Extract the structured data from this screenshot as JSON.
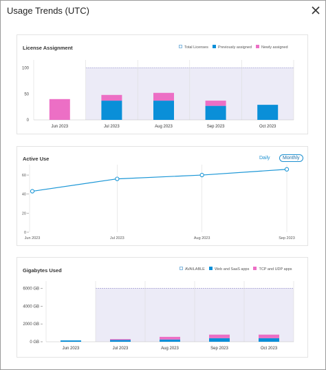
{
  "header": {
    "title": "Usage Trends (UTC)"
  },
  "icons": {
    "close": "close-icon"
  },
  "colors": {
    "previous": "#0a8fd8",
    "new": "#ec6fc5",
    "band": "#ecebf7",
    "band_border": "#a9a6d6",
    "line": "#1a96d6"
  },
  "license": {
    "title": "License Assignment",
    "legend": [
      "Total Licenses",
      "Previously assigned",
      "Newly assigned"
    ],
    "chart_data": {
      "type": "bar",
      "categories": [
        "Jun 2023",
        "Jul 2023",
        "Aug 2023",
        "Sep 2023",
        "Oct 2023"
      ],
      "y_ticks": [
        "0",
        "50",
        "100"
      ],
      "ylim": [
        0,
        110
      ],
      "series": [
        {
          "name": "Previously assigned",
          "values": [
            0,
            37,
            37,
            27,
            29
          ]
        },
        {
          "name": "Newly assigned",
          "values": [
            40,
            11,
            15,
            10,
            0
          ]
        }
      ],
      "total_licenses": 100
    }
  },
  "active": {
    "title": "Active Use",
    "toggle_daily": "Daily",
    "toggle_monthly": "Monthly",
    "chart_data": {
      "type": "line",
      "x": [
        "Jun 2023",
        "Jul 2023",
        "Aug 2023",
        "Sep 2023"
      ],
      "values": [
        43,
        56,
        60,
        66
      ],
      "y_ticks": [
        "0",
        "20",
        "40",
        "60"
      ],
      "ylim": [
        0,
        68
      ]
    }
  },
  "gigabytes": {
    "title": "Gigabytes Used",
    "legend": [
      "AVAILABLE",
      "Web and SaaS apps",
      "TCP and UDP apps"
    ],
    "chart_data": {
      "type": "bar",
      "categories": [
        "Jun 2023",
        "Jul 2023",
        "Aug 2023",
        "Sep 2023",
        "Oct 2023"
      ],
      "y_ticks": [
        "0 GB",
        "2000 GB",
        "4000 GB",
        "6000 GB"
      ],
      "ylim": [
        0,
        6500
      ],
      "series": [
        {
          "name": "Web and SaaS apps",
          "values": [
            150,
            200,
            250,
            400,
            400
          ]
        },
        {
          "name": "TCP and UDP apps",
          "values": [
            0,
            100,
            300,
            400,
            400
          ]
        }
      ],
      "available": 6000
    }
  }
}
